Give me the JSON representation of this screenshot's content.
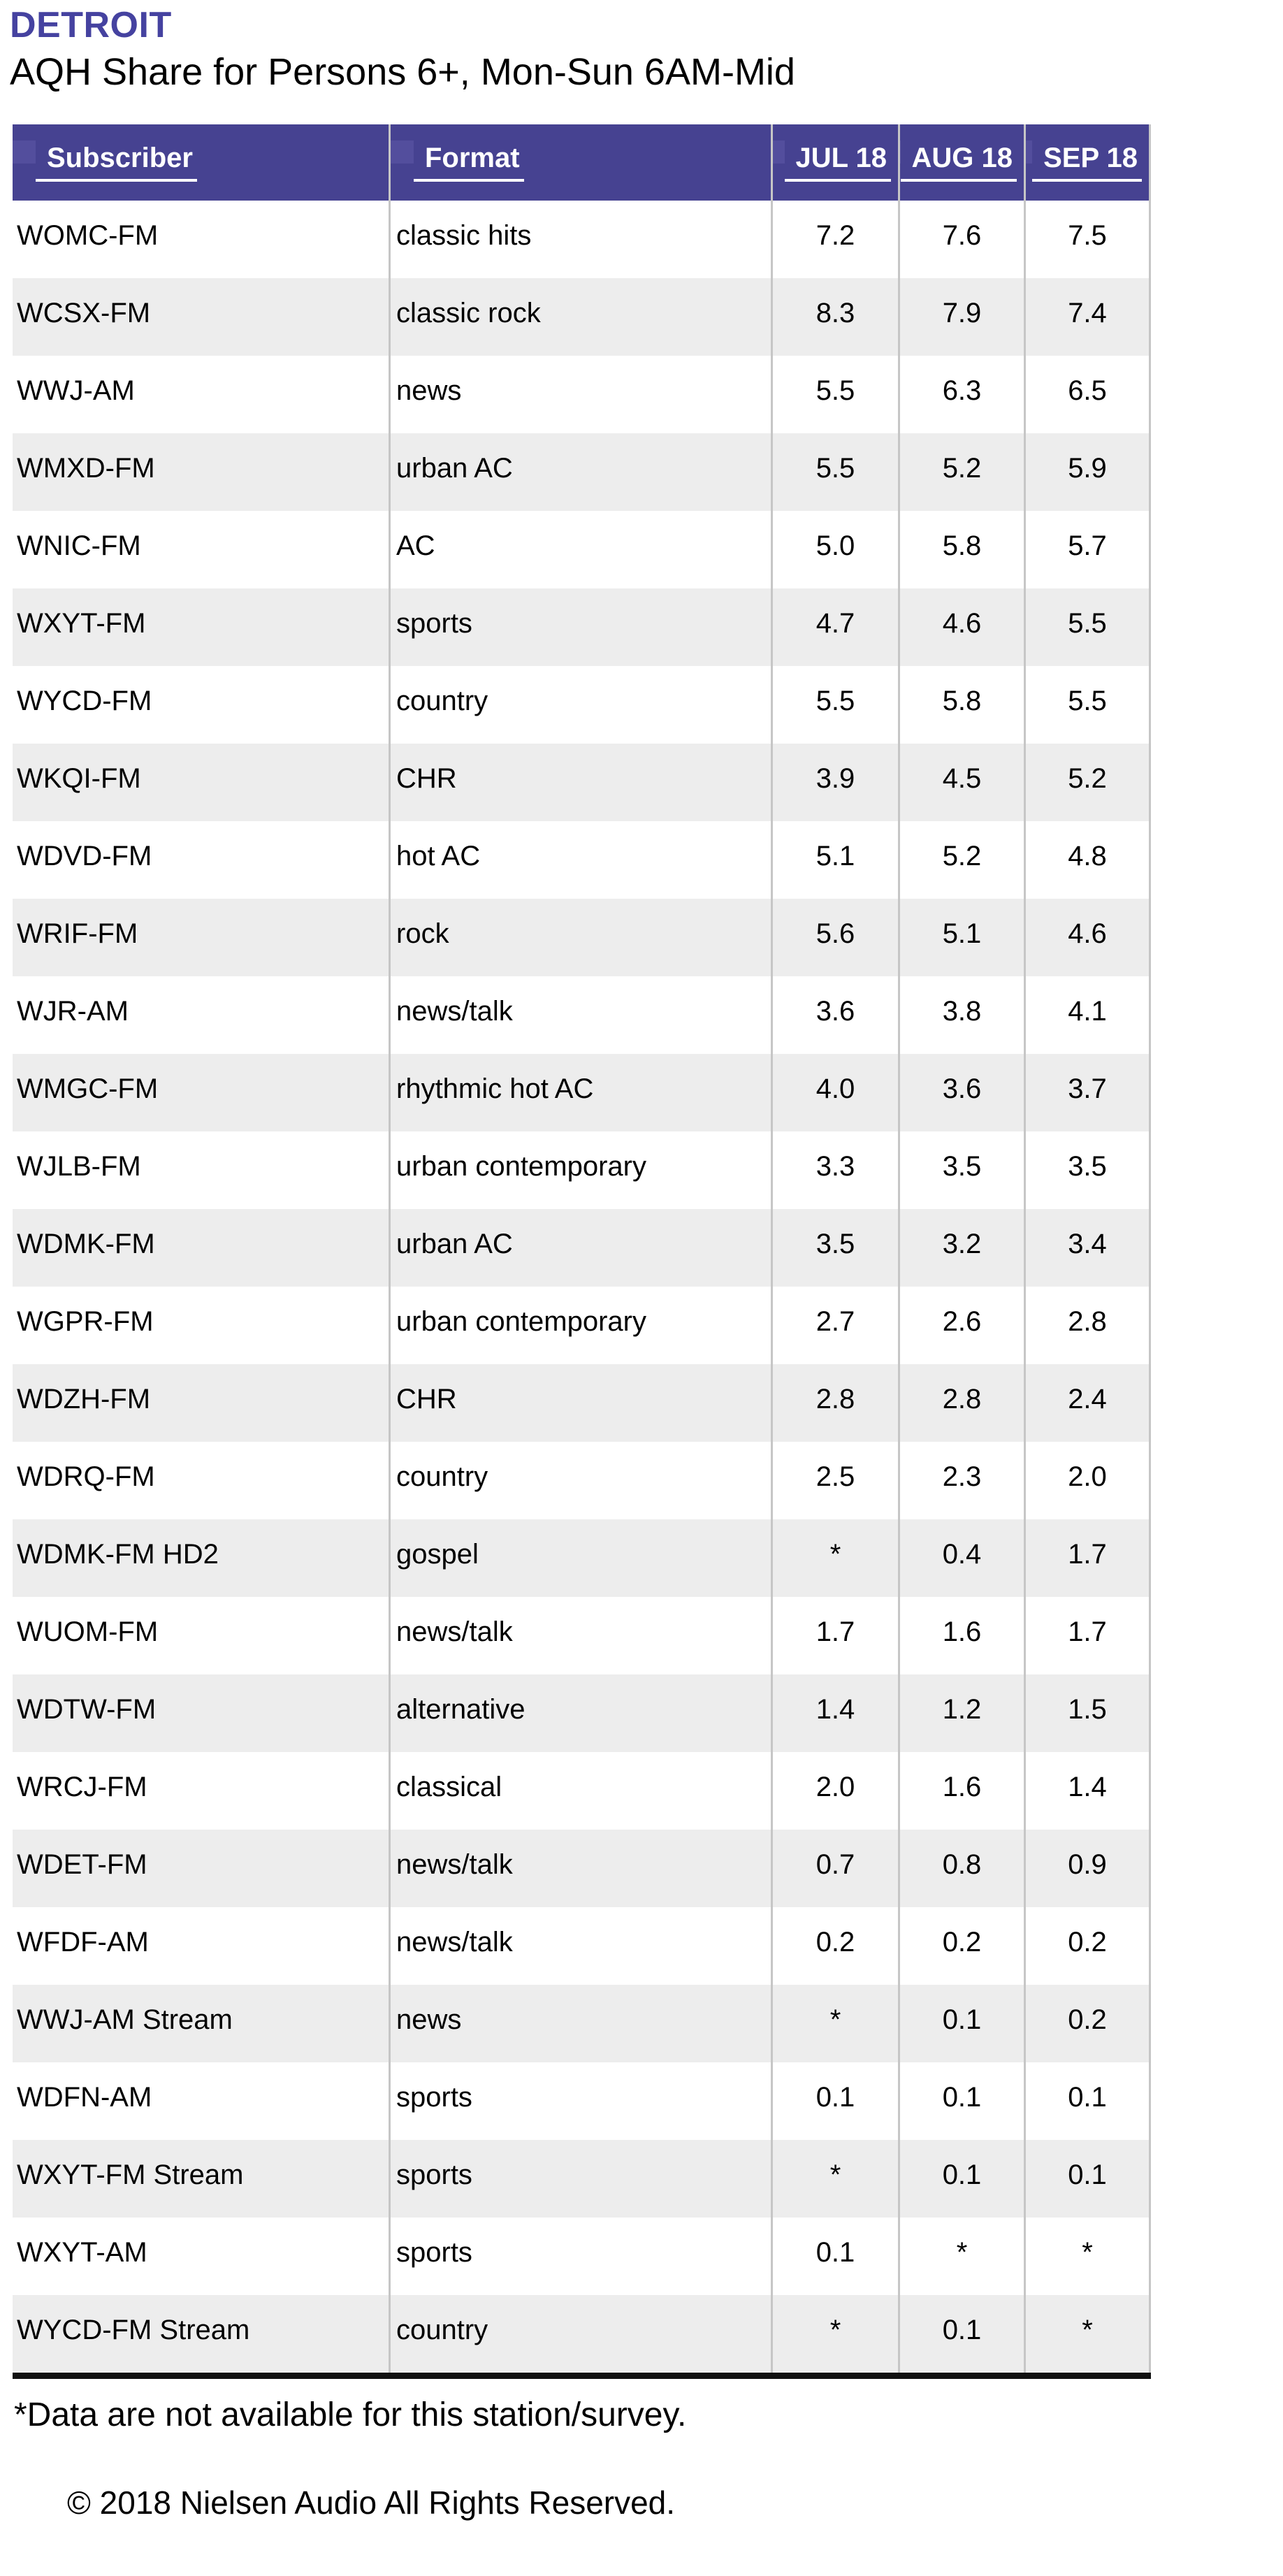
{
  "header": {
    "title": "DETROIT",
    "subtitle": "AQH Share for Persons 6+, Mon-Sun 6AM-Mid"
  },
  "table": {
    "columns": [
      "Subscriber",
      "Format",
      "JUL 18",
      "AUG 18",
      "SEP 18"
    ],
    "rows": [
      {
        "subscriber": "WOMC-FM",
        "format": "classic hits",
        "jul18": "7.2",
        "aug18": "7.6",
        "sep18": "7.5"
      },
      {
        "subscriber": "WCSX-FM",
        "format": "classic rock",
        "jul18": "8.3",
        "aug18": "7.9",
        "sep18": "7.4"
      },
      {
        "subscriber": "WWJ-AM",
        "format": "news",
        "jul18": "5.5",
        "aug18": "6.3",
        "sep18": "6.5"
      },
      {
        "subscriber": "WMXD-FM",
        "format": "urban AC",
        "jul18": "5.5",
        "aug18": "5.2",
        "sep18": "5.9"
      },
      {
        "subscriber": "WNIC-FM",
        "format": "AC",
        "jul18": "5.0",
        "aug18": "5.8",
        "sep18": "5.7"
      },
      {
        "subscriber": "WXYT-FM",
        "format": "sports",
        "jul18": "4.7",
        "aug18": "4.6",
        "sep18": "5.5"
      },
      {
        "subscriber": "WYCD-FM",
        "format": "country",
        "jul18": "5.5",
        "aug18": "5.8",
        "sep18": "5.5"
      },
      {
        "subscriber": "WKQI-FM",
        "format": "CHR",
        "jul18": "3.9",
        "aug18": "4.5",
        "sep18": "5.2"
      },
      {
        "subscriber": "WDVD-FM",
        "format": "hot AC",
        "jul18": "5.1",
        "aug18": "5.2",
        "sep18": "4.8"
      },
      {
        "subscriber": "WRIF-FM",
        "format": "rock",
        "jul18": "5.6",
        "aug18": "5.1",
        "sep18": "4.6"
      },
      {
        "subscriber": "WJR-AM",
        "format": "news/talk",
        "jul18": "3.6",
        "aug18": "3.8",
        "sep18": "4.1"
      },
      {
        "subscriber": "WMGC-FM",
        "format": "rhythmic hot AC",
        "jul18": "4.0",
        "aug18": "3.6",
        "sep18": "3.7"
      },
      {
        "subscriber": "WJLB-FM",
        "format": "urban contemporary",
        "jul18": "3.3",
        "aug18": "3.5",
        "sep18": "3.5"
      },
      {
        "subscriber": "WDMK-FM",
        "format": "urban AC",
        "jul18": "3.5",
        "aug18": "3.2",
        "sep18": "3.4"
      },
      {
        "subscriber": "WGPR-FM",
        "format": "urban contemporary",
        "jul18": "2.7",
        "aug18": "2.6",
        "sep18": "2.8"
      },
      {
        "subscriber": "WDZH-FM",
        "format": "CHR",
        "jul18": "2.8",
        "aug18": "2.8",
        "sep18": "2.4"
      },
      {
        "subscriber": "WDRQ-FM",
        "format": "country",
        "jul18": "2.5",
        "aug18": "2.3",
        "sep18": "2.0"
      },
      {
        "subscriber": "WDMK-FM HD2",
        "format": "gospel",
        "jul18": "*",
        "aug18": "0.4",
        "sep18": "1.7"
      },
      {
        "subscriber": "WUOM-FM",
        "format": "news/talk",
        "jul18": "1.7",
        "aug18": "1.6",
        "sep18": "1.7"
      },
      {
        "subscriber": "WDTW-FM",
        "format": "alternative",
        "jul18": "1.4",
        "aug18": "1.2",
        "sep18": "1.5"
      },
      {
        "subscriber": "WRCJ-FM",
        "format": "classical",
        "jul18": "2.0",
        "aug18": "1.6",
        "sep18": "1.4"
      },
      {
        "subscriber": "WDET-FM",
        "format": "news/talk",
        "jul18": "0.7",
        "aug18": "0.8",
        "sep18": "0.9"
      },
      {
        "subscriber": "WFDF-AM",
        "format": "news/talk",
        "jul18": "0.2",
        "aug18": "0.2",
        "sep18": "0.2"
      },
      {
        "subscriber": "WWJ-AM Stream",
        "format": "news",
        "jul18": "*",
        "aug18": "0.1",
        "sep18": "0.2"
      },
      {
        "subscriber": "WDFN-AM",
        "format": "sports",
        "jul18": "0.1",
        "aug18": "0.1",
        "sep18": "0.1"
      },
      {
        "subscriber": "WXYT-FM Stream",
        "format": "sports",
        "jul18": "*",
        "aug18": "0.1",
        "sep18": "0.1"
      },
      {
        "subscriber": "WXYT-AM",
        "format": "sports",
        "jul18": "0.1",
        "aug18": "*",
        "sep18": "*"
      },
      {
        "subscriber": "WYCD-FM Stream",
        "format": "country",
        "jul18": "*",
        "aug18": "0.1",
        "sep18": "*"
      }
    ]
  },
  "footer": {
    "footnote": "*Data are not available for this station/survey.",
    "copyright": "© 2018 Nielsen Audio All Rights Reserved."
  },
  "colors": {
    "header_bg": "#464291",
    "sort_square": "#534E9D",
    "title_purple": "#4542A0",
    "row_stripe": "#EDEDED",
    "divider": "#C6C6C6",
    "bottom_rule": "#111111"
  }
}
